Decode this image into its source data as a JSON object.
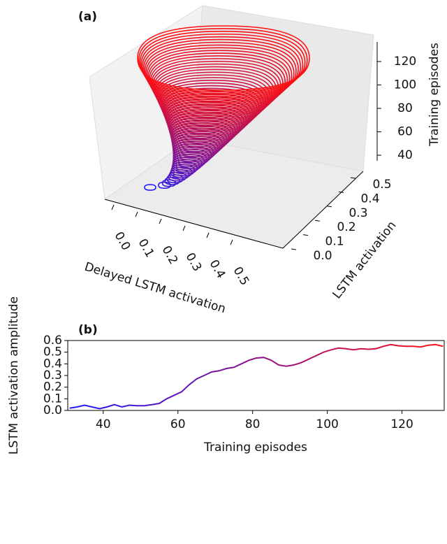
{
  "chart_data": [
    {
      "type": "line3d",
      "panel_label": "(a)",
      "xlabel": "Delayed LSTM activation",
      "ylabel": "LSTM activation",
      "zlabel": "Training episodes",
      "xticks": [
        {
          "value": 0,
          "label": "0.0"
        },
        0.1,
        0.2,
        0.3,
        0.4,
        0.5
      ],
      "yticks": [
        {
          "value": 0,
          "label": "0.0"
        },
        0.1,
        0.2,
        0.3,
        0.4,
        0.5
      ],
      "zticks": [
        40,
        60,
        80,
        100,
        120
      ],
      "zlim": [
        33,
        135
      ],
      "colormap": [
        "#1a1aff",
        "#ff1010"
      ]
    },
    {
      "type": "line",
      "panel_label": "(b)",
      "xlabel": "Training episodes",
      "ylabel": "LSTM activation amplitude",
      "x": [
        31,
        33,
        35,
        37,
        39,
        41,
        43,
        45,
        47,
        49,
        51,
        53,
        55,
        57,
        59,
        61,
        63,
        65,
        67,
        69,
        71,
        73,
        75,
        77,
        79,
        81,
        83,
        85,
        87,
        89,
        91,
        93,
        95,
        97,
        99,
        101,
        103,
        105,
        107,
        109,
        111,
        113,
        115,
        117,
        119,
        121,
        123,
        125,
        127,
        129,
        131
      ],
      "values": [
        0.02,
        0.03,
        0.045,
        0.03,
        0.015,
        0.03,
        0.05,
        0.03,
        0.045,
        0.04,
        0.04,
        0.05,
        0.06,
        0.1,
        0.13,
        0.16,
        0.22,
        0.27,
        0.3,
        0.33,
        0.34,
        0.36,
        0.37,
        0.4,
        0.43,
        0.45,
        0.455,
        0.43,
        0.39,
        0.38,
        0.39,
        0.41,
        0.44,
        0.47,
        0.5,
        0.52,
        0.535,
        0.53,
        0.52,
        0.53,
        0.525,
        0.53,
        0.55,
        0.565,
        0.555,
        0.55,
        0.55,
        0.545,
        0.56,
        0.565,
        0.55
      ],
      "xlim": [
        30.5,
        131.3
      ],
      "ylim": [
        0,
        0.6
      ],
      "xticks": [
        40,
        60,
        80,
        100,
        120
      ],
      "yticks": [
        {
          "value": 0,
          "label": "0.0"
        },
        0.1,
        0.2,
        0.3,
        0.4,
        0.5,
        0.6
      ],
      "colormap": [
        "#1a1aff",
        "#ff1010"
      ]
    }
  ]
}
